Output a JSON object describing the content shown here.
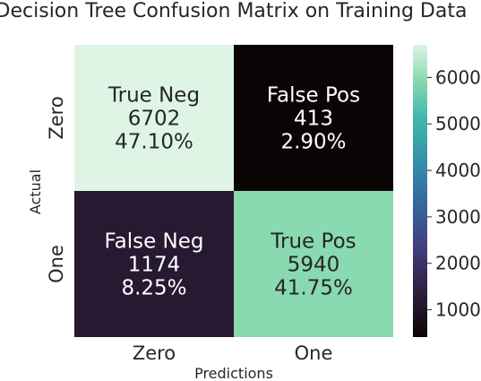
{
  "chart_data": {
    "type": "heatmap",
    "title": "Decision Tree Confusion Matrix on Training Data",
    "xlabel": "Predictions",
    "ylabel": "Actual",
    "x_categories": [
      "Zero",
      "One"
    ],
    "y_categories": [
      "Zero",
      "One"
    ],
    "values": [
      [
        6702,
        413
      ],
      [
        1174,
        5940
      ]
    ],
    "cell_labels": [
      [
        [
          "True Neg",
          "6702",
          "47.10%"
        ],
        [
          "False Pos",
          "413",
          "2.90%"
        ]
      ],
      [
        [
          "False Neg",
          "1174",
          "8.25%"
        ],
        [
          "True Pos",
          "5940",
          "41.75%"
        ]
      ]
    ],
    "colorbar": {
      "min": 413,
      "max": 6702,
      "ticks": [
        1000,
        2000,
        3000,
        4000,
        5000,
        6000
      ],
      "tick_labels": [
        "1000",
        "2000",
        "3000",
        "4000",
        "5000",
        "6000"
      ]
    },
    "colormap": "mako",
    "grid": false
  }
}
